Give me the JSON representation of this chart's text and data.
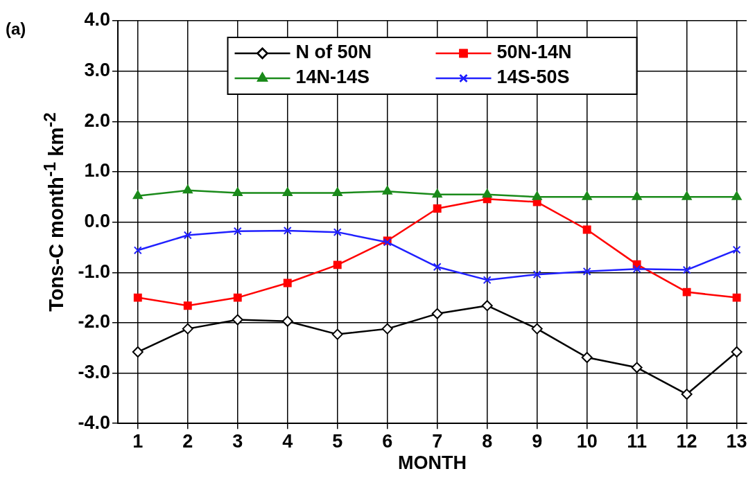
{
  "chart_data": {
    "type": "line",
    "ylabel": "Tons-C month$^{-1}$ km$^{-2}$",
    "xlabel": "MONTH",
    "annotations": [
      "(a)"
    ],
    "x": [
      1,
      2,
      3,
      4,
      5,
      6,
      7,
      8,
      9,
      10,
      11,
      12,
      13
    ],
    "xlim": [
      0.6,
      13.2
    ],
    "xticks": [
      1,
      2,
      3,
      4,
      5,
      6,
      7,
      8,
      9,
      10,
      11,
      12,
      13
    ],
    "ylim": [
      -4,
      4
    ],
    "yticks": [
      {
        "value": -4,
        "label": "-4.0"
      },
      {
        "value": -3,
        "label": "-3.0"
      },
      {
        "value": -2,
        "label": "-2.0"
      },
      {
        "value": -1,
        "label": "-1.0"
      },
      {
        "value": 0,
        "label": "0.0"
      },
      {
        "value": 1,
        "label": "1.0"
      },
      {
        "value": 2,
        "label": "2.0"
      },
      {
        "value": 3,
        "label": "3.0"
      },
      {
        "value": 4,
        "label": "4.0"
      }
    ],
    "grid": true,
    "legend": "top",
    "line_style": "solid",
    "series": [
      {
        "name": "N of 50N",
        "color": "#000000",
        "marker": "diamond",
        "values": [
          -2.58,
          -2.12,
          -1.94,
          -1.97,
          -2.23,
          -2.12,
          -1.82,
          -1.66,
          -2.12,
          -2.69,
          -2.89,
          -3.42,
          -2.58
        ]
      },
      {
        "name": "50N-14N",
        "color": "#ff0000",
        "marker": "square",
        "values": [
          -1.5,
          -1.66,
          -1.5,
          -1.21,
          -0.85,
          -0.37,
          0.27,
          0.46,
          0.4,
          -0.15,
          -0.84,
          -1.39,
          -1.5
        ]
      },
      {
        "name": "14N-14S",
        "color": "#1a8a1a",
        "marker": "triangle",
        "values": [
          0.52,
          0.63,
          0.58,
          0.58,
          0.58,
          0.61,
          0.55,
          0.55,
          0.5,
          0.5,
          0.5,
          0.5,
          0.5
        ]
      },
      {
        "name": "14S-50S",
        "color": "#2020ff",
        "marker": "cross",
        "values": [
          -0.56,
          -0.26,
          -0.18,
          -0.17,
          -0.2,
          -0.4,
          -0.89,
          -1.15,
          -1.04,
          -0.98,
          -0.93,
          -0.95,
          -0.55
        ]
      }
    ]
  }
}
